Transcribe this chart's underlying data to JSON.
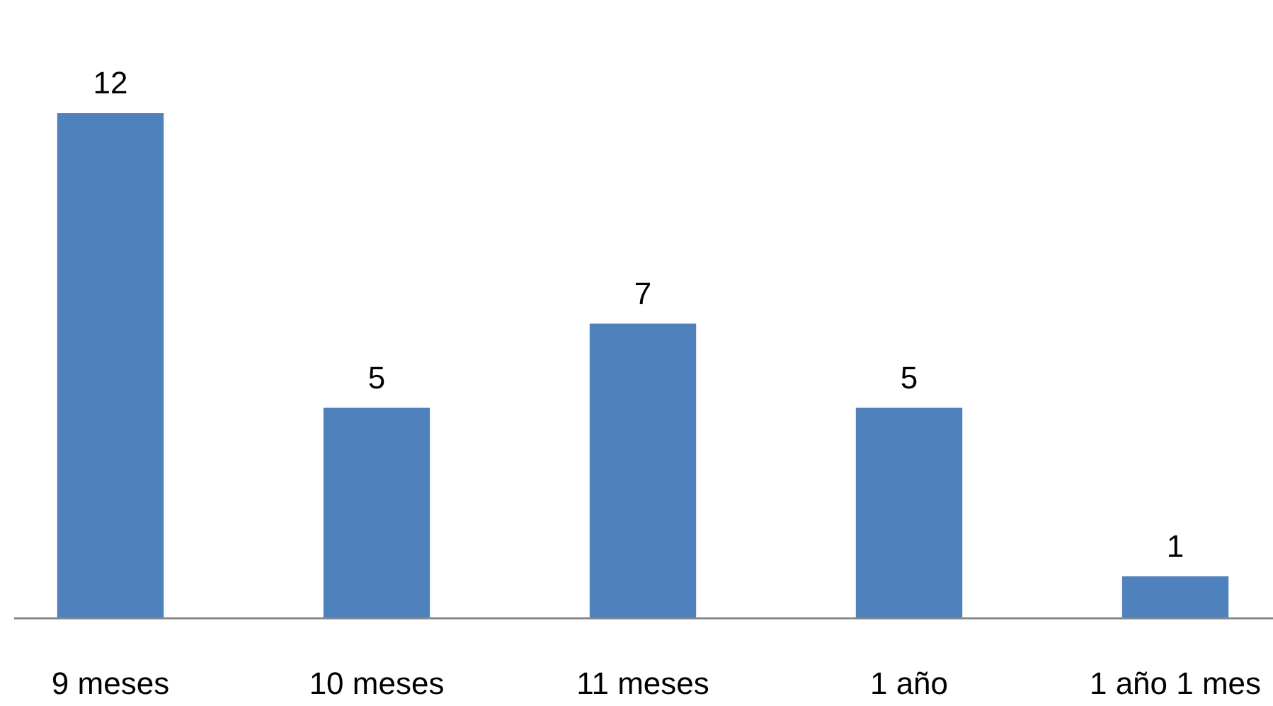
{
  "chart_data": {
    "type": "bar",
    "categories": [
      "9 meses",
      "10 meses",
      "11 meses",
      "1 año",
      "1 año 1 mes"
    ],
    "values": [
      12,
      5,
      7,
      5,
      1
    ],
    "color": "#4f81bd",
    "data_labels": true
  }
}
